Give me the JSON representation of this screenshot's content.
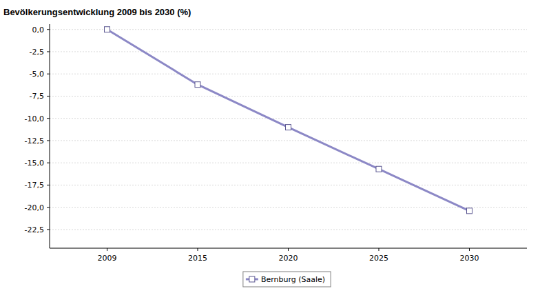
{
  "chart_data": {
    "type": "line",
    "title": "Bevölkerungsentwicklung 2009 bis 2030 (%)",
    "categories": [
      "2009",
      "2015",
      "2020",
      "2025",
      "2030"
    ],
    "series": [
      {
        "name": "Bernburg (Saale)",
        "color": "#8c88c6",
        "marker": "square",
        "line_style": "solid",
        "values": [
          0.0,
          -6.2,
          -11.0,
          -15.7,
          -20.4
        ]
      }
    ],
    "ylim": [
      -24.6,
      0.6
    ],
    "yticks": [
      {
        "value": 0,
        "label": "0,0"
      },
      {
        "value": -2.5,
        "label": "-2,5"
      },
      {
        "value": -5,
        "label": "-5,0"
      },
      {
        "value": -7.5,
        "label": "-7,5"
      },
      {
        "value": -10,
        "label": "-10,0"
      },
      {
        "value": -12.5,
        "label": "-12,5"
      },
      {
        "value": -15,
        "label": "-15,0"
      },
      {
        "value": -17.5,
        "label": "-17,5"
      },
      {
        "value": -20,
        "label": "-20,0"
      },
      {
        "value": -22.5,
        "label": "-22,5"
      }
    ],
    "grid": true,
    "legend": "bottom"
  }
}
